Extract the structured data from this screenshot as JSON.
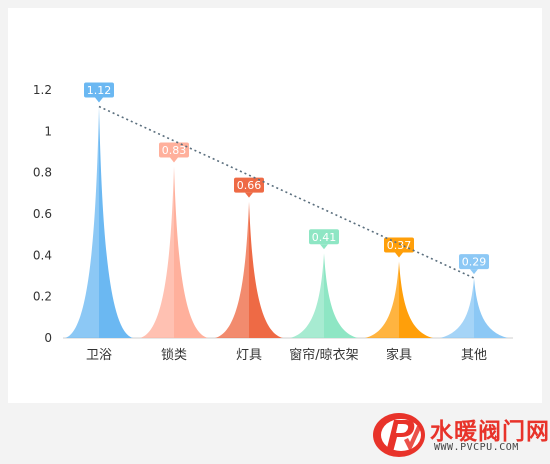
{
  "chart_data": {
    "type": "area",
    "categories": [
      "卫浴",
      "锁类",
      "灯具",
      "窗帘/晾衣架",
      "家具",
      "其他"
    ],
    "values": [
      1.12,
      0.83,
      0.66,
      0.41,
      0.37,
      0.29
    ],
    "data_labels": [
      "1.12",
      "0.83",
      "0.66",
      "0.41",
      "0.37",
      "0.29"
    ],
    "colors": [
      "#6bb8f2",
      "#ffb09c",
      "#ee6a45",
      "#8ee6c4",
      "#ff9f0a",
      "#8cc8f5"
    ],
    "y_ticks": [
      "0",
      "0.2",
      "0.4",
      "0.6",
      "0.8",
      "1",
      "1.2"
    ],
    "ylim": [
      0,
      1.2
    ],
    "trendline": {
      "style": "dotted",
      "color": "#5b6f7e"
    },
    "title": "",
    "xlabel": "",
    "ylabel": "",
    "grid": false
  },
  "watermark": {
    "title": "水暖阀门网",
    "url": "WWW.PVCPU.COM",
    "logo_letters": "PV"
  }
}
